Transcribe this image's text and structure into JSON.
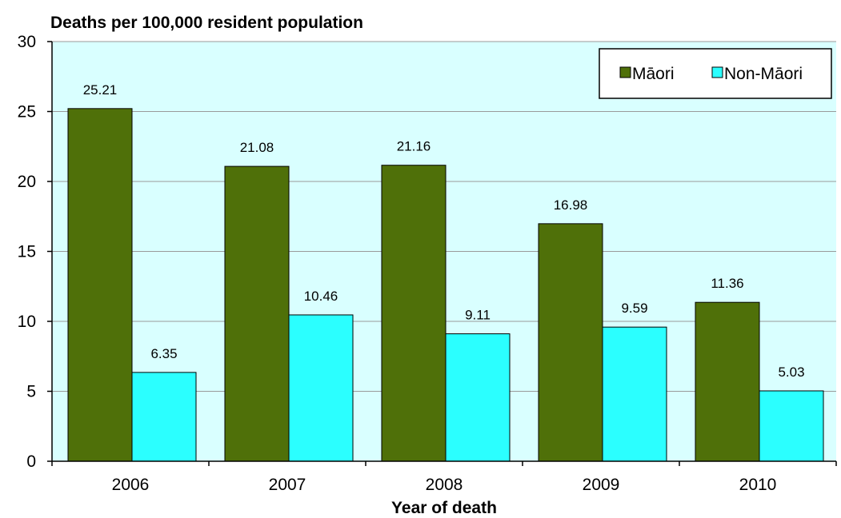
{
  "chart_data": {
    "type": "bar",
    "title": "Deaths per 100,000 resident population",
    "xlabel": "Year of death",
    "ylabel": "",
    "categories": [
      "2006",
      "2007",
      "2008",
      "2009",
      "2010"
    ],
    "series": [
      {
        "name": "Māori",
        "values": [
          25.21,
          21.08,
          21.16,
          16.98,
          11.36
        ],
        "color": "#4F7009"
      },
      {
        "name": "Non-Māori",
        "values": [
          6.35,
          10.46,
          9.11,
          9.59,
          5.03
        ],
        "color": "#2BFFFF"
      }
    ],
    "data_labels": [
      [
        "25.21",
        "21.08",
        "21.16",
        "16.98",
        "11.36"
      ],
      [
        "6.35",
        "10.46",
        "9.11",
        "9.59",
        "5.03"
      ]
    ],
    "ylim": [
      0,
      30
    ],
    "yticks": [
      "0",
      "5",
      "10",
      "15",
      "20",
      "25",
      "30"
    ],
    "grid": true,
    "legend_position": "top-right",
    "plot_background": "#D9FFFF"
  }
}
